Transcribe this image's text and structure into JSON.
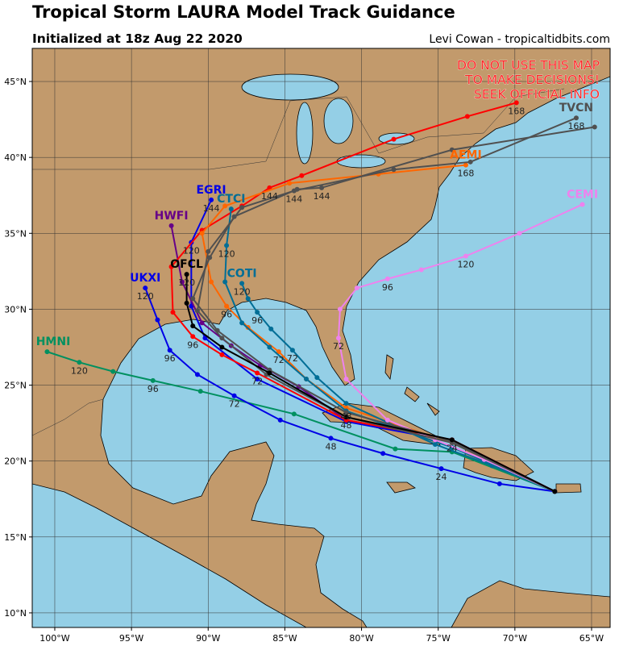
{
  "header": {
    "title": "Tropical Storm LAURA Model Track Guidance",
    "subtitle": "Initialized at 18z Aug 22 2020",
    "credit": "Levi Cowan - tropicaltidbits.com"
  },
  "warning": [
    "DO NOT USE THIS MAP",
    "TO MAKE DECISIONS!",
    "SEEK OFFICIAL INFO"
  ],
  "map": {
    "lon_range": [
      -101.47,
      -63.79
    ],
    "lat_range": [
      9.04,
      47.18
    ],
    "lon_ticks": [
      {
        "value": -100,
        "label": "100°W"
      },
      {
        "value": -95,
        "label": "95°W"
      },
      {
        "value": -90,
        "label": "90°W"
      },
      {
        "value": -85,
        "label": "85°W"
      },
      {
        "value": -80,
        "label": "80°W"
      },
      {
        "value": -75,
        "label": "75°W"
      },
      {
        "value": -70,
        "label": "70°W"
      },
      {
        "value": -65,
        "label": "65°W"
      }
    ],
    "lat_ticks": [
      {
        "value": 10,
        "label": "10°N"
      },
      {
        "value": 15,
        "label": "15°N"
      },
      {
        "value": 20,
        "label": "20°N"
      },
      {
        "value": 25,
        "label": "25°N"
      },
      {
        "value": 30,
        "label": "30°N"
      },
      {
        "value": 35,
        "label": "35°N"
      },
      {
        "value": 40,
        "label": "40°N"
      },
      {
        "value": 45,
        "label": "45°N"
      }
    ]
  },
  "tracks": [
    {
      "name": "HMNI",
      "color": "#009060",
      "points": [
        {
          "lon": -67.4,
          "lat": 18.0
        },
        {
          "lon": -74.1,
          "lat": 20.6
        },
        {
          "lon": -77.8,
          "lat": 20.8
        },
        {
          "lon": -84.4,
          "lat": 23.1
        },
        {
          "lon": -90.5,
          "lat": 24.6
        },
        {
          "lon": -93.6,
          "lat": 25.3,
          "label": "96"
        },
        {
          "lon": -96.2,
          "lat": 25.9
        },
        {
          "lon": -98.4,
          "lat": 26.5,
          "label": "120"
        },
        {
          "lon": -100.5,
          "lat": 27.2
        }
      ]
    },
    {
      "name": "UKXI",
      "color": "#0000e6",
      "points": [
        {
          "lon": -67.4,
          "lat": 18.0
        },
        {
          "lon": -71.0,
          "lat": 18.5
        },
        {
          "lon": -74.8,
          "lat": 19.5,
          "label": "24"
        },
        {
          "lon": -78.6,
          "lat": 20.5
        },
        {
          "lon": -82.0,
          "lat": 21.5,
          "label": "48"
        },
        {
          "lon": -85.3,
          "lat": 22.7
        },
        {
          "lon": -88.3,
          "lat": 24.3,
          "label": "72"
        },
        {
          "lon": -90.7,
          "lat": 25.7
        },
        {
          "lon": -92.5,
          "lat": 27.3,
          "label": "96"
        },
        {
          "lon": -93.3,
          "lat": 29.3
        },
        {
          "lon": -94.1,
          "lat": 31.4,
          "label": "120"
        }
      ]
    },
    {
      "name": "EGRI",
      "color": "#0000e6",
      "points": [
        {
          "lon": -67.4,
          "lat": 18.0
        },
        {
          "lon": -74.1,
          "lat": 21.3
        },
        {
          "lon": -81.0,
          "lat": 22.6
        },
        {
          "lon": -86.8,
          "lat": 25.4
        },
        {
          "lon": -90.2,
          "lat": 28.1
        },
        {
          "lon": -91.1,
          "lat": 30.2
        },
        {
          "lon": -91.1,
          "lat": 34.4,
          "label": "120"
        },
        {
          "lon": -89.8,
          "lat": 37.2,
          "label": "144"
        }
      ]
    },
    {
      "name": "HWFI",
      "color": "#660088",
      "points": [
        {
          "lon": -67.4,
          "lat": 18.0
        },
        {
          "lon": -74.1,
          "lat": 21.4
        },
        {
          "lon": -81.0,
          "lat": 22.7
        },
        {
          "lon": -84.1,
          "lat": 24.9
        },
        {
          "lon": -86.6,
          "lat": 26.3
        },
        {
          "lon": -88.5,
          "lat": 27.6
        },
        {
          "lon": -90.4,
          "lat": 29.1
        },
        {
          "lon": -91.7,
          "lat": 31.8
        },
        {
          "lon": -92.4,
          "lat": 35.5
        }
      ]
    },
    {
      "color": "#ff0000",
      "points": [
        {
          "lon": -67.4,
          "lat": 18.0
        },
        {
          "lon": -74.1,
          "lat": 21.4
        },
        {
          "lon": -81.0,
          "lat": 22.7
        },
        {
          "lon": -86.8,
          "lat": 25.8,
          "label": "72"
        },
        {
          "lon": -89.1,
          "lat": 27.0
        },
        {
          "lon": -91.0,
          "lat": 28.2,
          "label": "96"
        },
        {
          "lon": -92.3,
          "lat": 29.8
        },
        {
          "lon": -92.4,
          "lat": 32.8
        },
        {
          "lon": -90.4,
          "lat": 35.2
        },
        {
          "lon": -87.8,
          "lat": 36.8
        },
        {
          "lon": -86.0,
          "lat": 38.0,
          "label": "144"
        },
        {
          "lon": -83.9,
          "lat": 38.8
        },
        {
          "lon": -77.9,
          "lat": 41.2
        },
        {
          "lon": -73.1,
          "lat": 42.7
        },
        {
          "lon": -69.9,
          "lat": 43.6,
          "label": "168"
        }
      ]
    },
    {
      "name": "AEMI",
      "color": "#ff6600",
      "points": [
        {
          "lon": -67.4,
          "lat": 18.0
        },
        {
          "lon": -74.1,
          "lat": 21.2
        },
        {
          "lon": -81.0,
          "lat": 23.5,
          "label": "48"
        },
        {
          "lon": -83.6,
          "lat": 25.4
        },
        {
          "lon": -85.4,
          "lat": 27.2,
          "label": "72"
        },
        {
          "lon": -87.4,
          "lat": 28.8
        },
        {
          "lon": -88.8,
          "lat": 30.2,
          "label": "96"
        },
        {
          "lon": -89.8,
          "lat": 31.8
        },
        {
          "lon": -90.4,
          "lat": 35.0
        },
        {
          "lon": -88.9,
          "lat": 36.8
        },
        {
          "lon": -84.7,
          "lat": 38.3
        },
        {
          "lon": -78.9,
          "lat": 38.9
        },
        {
          "lon": -73.2,
          "lat": 39.5,
          "label": "168"
        }
      ]
    },
    {
      "name": "CTCI",
      "color": "#006e96",
      "points": [
        {
          "lon": -67.4,
          "lat": 18.0
        },
        {
          "lon": -74.1,
          "lat": 20.9
        },
        {
          "lon": -81.0,
          "lat": 23.3
        },
        {
          "lon": -83.6,
          "lat": 25.4
        },
        {
          "lon": -86.0,
          "lat": 27.5
        },
        {
          "lon": -87.8,
          "lat": 29.1
        },
        {
          "lon": -88.9,
          "lat": 31.8
        },
        {
          "lon": -88.8,
          "lat": 34.2,
          "label": "120"
        },
        {
          "lon": -88.5,
          "lat": 36.6
        }
      ]
    },
    {
      "name": "COTI",
      "color": "#006e96",
      "points": [
        {
          "lon": -67.4,
          "lat": 18.0
        },
        {
          "lon": -71.5,
          "lat": 19.7
        },
        {
          "lon": -75.2,
          "lat": 21.1
        },
        {
          "lon": -81.0,
          "lat": 23.8
        },
        {
          "lon": -82.9,
          "lat": 25.5
        },
        {
          "lon": -84.5,
          "lat": 27.3,
          "label": "72"
        },
        {
          "lon": -85.9,
          "lat": 28.7
        },
        {
          "lon": -86.8,
          "lat": 29.8,
          "label": "96"
        },
        {
          "lon": -87.4,
          "lat": 30.7
        },
        {
          "lon": -87.8,
          "lat": 31.7,
          "label": "120"
        }
      ]
    },
    {
      "name": "CEMI",
      "color": "#ee82ee",
      "points": [
        {
          "lon": -67.4,
          "lat": 18.0
        },
        {
          "lon": -72.0,
          "lat": 20.1
        },
        {
          "lon": -75.2,
          "lat": 21.4
        },
        {
          "lon": -78.3,
          "lat": 22.7
        },
        {
          "lon": -81.0,
          "lat": 25.4
        },
        {
          "lon": -81.5,
          "lat": 28.1,
          "label": "72"
        },
        {
          "lon": -81.4,
          "lat": 30.0
        },
        {
          "lon": -80.3,
          "lat": 31.4
        },
        {
          "lon": -78.3,
          "lat": 32.0,
          "label": "96"
        },
        {
          "lon": -76.1,
          "lat": 32.6
        },
        {
          "lon": -73.2,
          "lat": 33.5,
          "label": "120"
        },
        {
          "lon": -69.7,
          "lat": 35.0
        },
        {
          "lon": -65.6,
          "lat": 36.9
        }
      ]
    },
    {
      "name": "TVCN",
      "color": "#505050",
      "points": [
        {
          "lon": -67.4,
          "lat": 18.0
        },
        {
          "lon": -74.1,
          "lat": 21.2
        },
        {
          "lon": -81.0,
          "lat": 22.9
        },
        {
          "lon": -86.2,
          "lat": 25.7
        },
        {
          "lon": -89.1,
          "lat": 28.1
        },
        {
          "lon": -90.7,
          "lat": 29.9
        },
        {
          "lon": -90.0,
          "lat": 33.8
        },
        {
          "lon": -87.8,
          "lat": 36.7
        },
        {
          "lon": -84.4,
          "lat": 37.8,
          "label": "144"
        },
        {
          "lon": -77.9,
          "lat": 39.2
        },
        {
          "lon": -72.9,
          "lat": 39.7
        },
        {
          "lon": -66.0,
          "lat": 42.6,
          "label": "168"
        }
      ]
    },
    {
      "color": "#505050",
      "points": [
        {
          "lon": -67.4,
          "lat": 18.0
        },
        {
          "lon": -74.1,
          "lat": 21.3
        },
        {
          "lon": -81.0,
          "lat": 23.2
        },
        {
          "lon": -86.0,
          "lat": 26.0
        },
        {
          "lon": -89.4,
          "lat": 28.6
        },
        {
          "lon": -91.0,
          "lat": 30.7
        },
        {
          "lon": -89.9,
          "lat": 33.4
        },
        {
          "lon": -88.3,
          "lat": 36.1
        },
        {
          "lon": -84.2,
          "lat": 37.9
        },
        {
          "lon": -82.6,
          "lat": 38.0,
          "label": "144"
        },
        {
          "lon": -74.1,
          "lat": 40.5
        },
        {
          "lon": -64.8,
          "lat": 42.0
        }
      ]
    },
    {
      "name": "OFCL",
      "color": "#000000",
      "points": [
        {
          "lon": -67.4,
          "lat": 18.0
        },
        {
          "lon": -74.1,
          "lat": 21.4,
          "label": "24"
        },
        {
          "lon": -81.0,
          "lat": 22.9,
          "label": "48"
        },
        {
          "lon": -86.0,
          "lat": 25.8
        },
        {
          "lon": -89.1,
          "lat": 27.5
        },
        {
          "lon": -91.0,
          "lat": 28.9
        },
        {
          "lon": -91.4,
          "lat": 30.4
        },
        {
          "lon": -91.4,
          "lat": 32.3,
          "label": "120"
        }
      ]
    }
  ]
}
